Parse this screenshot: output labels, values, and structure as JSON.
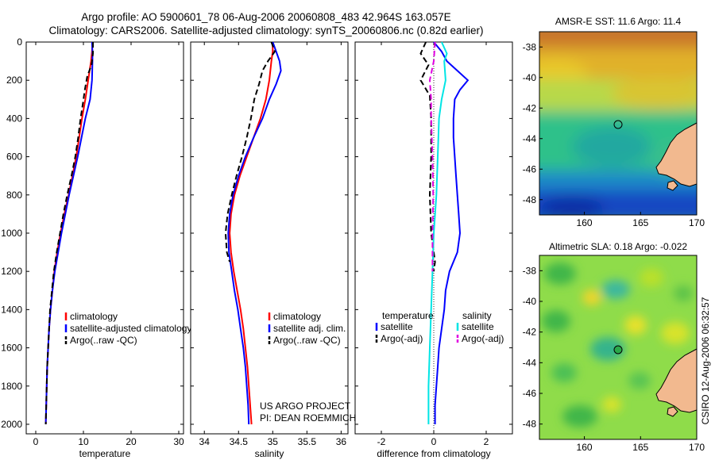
{
  "figure": {
    "title_line1": "Argo profile: AO 5900601_78 06-Aug-2006 20060808_483 42.964S 163.057E",
    "title_line2": "Climatology: CARS2006. Satellite-adjusted climatology: synTS_20060806.nc (0.82d earlier)",
    "footer_lines": [
      "US ARGO PROJECT",
      "PI: DEAN ROEMMICH"
    ],
    "side_stamp": "CSIRO 12-Aug-2006 06:32:57"
  },
  "colors": {
    "climatology": "#ff0000",
    "satellite": "#0000ff",
    "argo": "#000000",
    "sal_satellite": "#00e5e5",
    "sal_argo": "#e000e0",
    "coast": "#f2b98f",
    "float_marker": "#000000"
  },
  "chart_data": [
    {
      "id": "temperature",
      "type": "line",
      "xlabel": "temperature",
      "xlim": [
        -2,
        31
      ],
      "ylim": [
        0,
        2050
      ],
      "y_reversed": true,
      "xticks": [
        0,
        10,
        20,
        30
      ],
      "yticks": [
        0,
        200,
        400,
        600,
        800,
        1000,
        1200,
        1400,
        1600,
        1800,
        2000
      ],
      "legend": [
        "climatology",
        "satellite-adjusted climatology",
        "Argo(..raw -QC)"
      ],
      "series": [
        {
          "name": "climatology",
          "color_key": "climatology",
          "dash": "",
          "points": [
            [
              11.9,
              0
            ],
            [
              11.8,
              50
            ],
            [
              11.6,
              100
            ],
            [
              11.3,
              150
            ],
            [
              11.0,
              200
            ],
            [
              10.4,
              300
            ],
            [
              9.7,
              400
            ],
            [
              9.1,
              500
            ],
            [
              8.5,
              600
            ],
            [
              7.7,
              700
            ],
            [
              6.9,
              800
            ],
            [
              6.0,
              900
            ],
            [
              5.2,
              1000
            ],
            [
              4.5,
              1100
            ],
            [
              3.9,
              1200
            ],
            [
              3.5,
              1300
            ],
            [
              3.1,
              1400
            ],
            [
              2.8,
              1500
            ],
            [
              2.6,
              1600
            ],
            [
              2.4,
              1700
            ],
            [
              2.3,
              1800
            ],
            [
              2.2,
              1900
            ],
            [
              2.1,
              2000
            ]
          ]
        },
        {
          "name": "satellite-adjusted climatology",
          "color_key": "satellite",
          "dash": "",
          "points": [
            [
              11.8,
              0
            ],
            [
              11.9,
              50
            ],
            [
              11.9,
              100
            ],
            [
              11.8,
              200
            ],
            [
              11.4,
              300
            ],
            [
              10.4,
              400
            ],
            [
              9.6,
              500
            ],
            [
              8.8,
              600
            ],
            [
              7.9,
              700
            ],
            [
              7.0,
              800
            ],
            [
              6.2,
              900
            ],
            [
              5.4,
              1000
            ],
            [
              4.7,
              1100
            ],
            [
              4.0,
              1200
            ],
            [
              3.5,
              1300
            ],
            [
              3.1,
              1400
            ],
            [
              2.8,
              1500
            ],
            [
              2.6,
              1600
            ],
            [
              2.4,
              1700
            ],
            [
              2.3,
              1800
            ],
            [
              2.2,
              1900
            ],
            [
              2.1,
              2000
            ]
          ]
        },
        {
          "name": "Argo(..raw -QC)",
          "color_key": "argo",
          "dash": "7,4",
          "points": [
            [
              12.0,
              0
            ],
            [
              12.0,
              60
            ],
            [
              11.7,
              120
            ],
            [
              10.8,
              180
            ],
            [
              10.3,
              250
            ],
            [
              9.9,
              320
            ],
            [
              9.4,
              400
            ],
            [
              8.9,
              500
            ],
            [
              8.3,
              600
            ],
            [
              7.5,
              700
            ],
            [
              6.6,
              800
            ],
            [
              5.8,
              900
            ],
            [
              5.1,
              1000
            ],
            [
              4.4,
              1100
            ],
            [
              3.8,
              1200
            ],
            [
              3.4,
              1300
            ],
            [
              3.0,
              1400
            ],
            [
              2.8,
              1500
            ],
            [
              2.6,
              1600
            ],
            [
              2.4,
              1700
            ],
            [
              2.3,
              1800
            ],
            [
              2.2,
              1900
            ],
            [
              2.1,
              2000
            ]
          ]
        }
      ]
    },
    {
      "id": "salinity",
      "type": "line",
      "xlabel": "salinity",
      "xlim": [
        33.8,
        36.1
      ],
      "ylim": [
        0,
        2050
      ],
      "y_reversed": true,
      "xticks": [
        34,
        34.5,
        35,
        35.5,
        36
      ],
      "yticks": [
        0,
        200,
        400,
        600,
        800,
        1000,
        1200,
        1400,
        1600,
        1800,
        2000
      ],
      "legend": [
        "climatology",
        "satellite adj. clim.",
        "Argo(..raw -QC)"
      ],
      "series": [
        {
          "name": "climatology",
          "color_key": "climatology",
          "dash": "",
          "points": [
            [
              35.0,
              0
            ],
            [
              35.0,
              50
            ],
            [
              34.98,
              100
            ],
            [
              34.95,
              200
            ],
            [
              34.9,
              300
            ],
            [
              34.82,
              400
            ],
            [
              34.72,
              500
            ],
            [
              34.62,
              600
            ],
            [
              34.52,
              700
            ],
            [
              34.44,
              800
            ],
            [
              34.39,
              900
            ],
            [
              34.37,
              1000
            ],
            [
              34.39,
              1100
            ],
            [
              34.43,
              1200
            ],
            [
              34.48,
              1300
            ],
            [
              34.53,
              1400
            ],
            [
              34.57,
              1500
            ],
            [
              34.6,
              1600
            ],
            [
              34.63,
              1700
            ],
            [
              34.65,
              1800
            ],
            [
              34.67,
              1900
            ],
            [
              34.69,
              2000
            ]
          ]
        },
        {
          "name": "satellite adj. clim.",
          "color_key": "satellite",
          "dash": "",
          "points": [
            [
              35.0,
              0
            ],
            [
              35.06,
              60
            ],
            [
              35.1,
              100
            ],
            [
              35.12,
              150
            ],
            [
              35.05,
              220
            ],
            [
              34.95,
              300
            ],
            [
              34.85,
              400
            ],
            [
              34.72,
              500
            ],
            [
              34.6,
              600
            ],
            [
              34.5,
              700
            ],
            [
              34.42,
              800
            ],
            [
              34.37,
              900
            ],
            [
              34.35,
              1000
            ],
            [
              34.36,
              1100
            ],
            [
              34.4,
              1200
            ],
            [
              34.44,
              1300
            ],
            [
              34.49,
              1400
            ],
            [
              34.53,
              1500
            ],
            [
              34.57,
              1600
            ],
            [
              34.6,
              1700
            ],
            [
              34.62,
              1800
            ],
            [
              34.64,
              1900
            ],
            [
              34.65,
              2000
            ]
          ]
        },
        {
          "name": "Argo(..raw -QC)",
          "color_key": "argo",
          "dash": "7,4",
          "points": [
            [
              34.98,
              0
            ],
            [
              35.03,
              50
            ],
            [
              34.93,
              100
            ],
            [
              34.85,
              150
            ],
            [
              34.8,
              220
            ],
            [
              34.73,
              300
            ],
            [
              34.68,
              400
            ],
            [
              34.62,
              500
            ],
            [
              34.55,
              600
            ],
            [
              34.47,
              700
            ],
            [
              34.4,
              800
            ],
            [
              34.34,
              900
            ],
            [
              34.31,
              1000
            ],
            [
              34.33,
              1100
            ],
            [
              34.37,
              1150
            ]
          ]
        }
      ]
    },
    {
      "id": "difference",
      "type": "line",
      "xlabel": "difference from climatology",
      "xlim": [
        -3,
        3
      ],
      "ylim": [
        0,
        2050
      ],
      "y_reversed": true,
      "xticks": [
        -2,
        0,
        2
      ],
      "yticks": [
        0,
        200,
        400,
        600,
        800,
        1000,
        1200,
        1400,
        1600,
        1800,
        2000
      ],
      "legend_headers": [
        "temperature",
        "salinity"
      ],
      "legend_temperature": [
        "satellite",
        "Argo(-adj)"
      ],
      "legend_salinity": [
        "satellite",
        "Argo(-adj)"
      ],
      "series": [
        {
          "name": "temperature satellite",
          "color_key": "satellite",
          "dash": "",
          "points": [
            [
              0.0,
              0
            ],
            [
              0.3,
              50
            ],
            [
              0.5,
              100
            ],
            [
              0.9,
              150
            ],
            [
              1.3,
              200
            ],
            [
              1.0,
              250
            ],
            [
              0.8,
              300
            ],
            [
              0.75,
              400
            ],
            [
              0.75,
              500
            ],
            [
              0.8,
              600
            ],
            [
              0.85,
              700
            ],
            [
              0.9,
              800
            ],
            [
              0.95,
              900
            ],
            [
              1.0,
              1000
            ],
            [
              0.9,
              1100
            ],
            [
              0.6,
              1200
            ],
            [
              0.45,
              1300
            ],
            [
              0.4,
              1400
            ],
            [
              0.3,
              1500
            ],
            [
              0.2,
              1600
            ],
            [
              0.15,
              1700
            ],
            [
              0.1,
              1800
            ],
            [
              0.05,
              1900
            ],
            [
              0.05,
              2000
            ]
          ]
        },
        {
          "name": "temperature Argo(-adj)",
          "color_key": "argo",
          "dash": "7,4",
          "points": [
            [
              -0.3,
              0
            ],
            [
              -0.5,
              60
            ],
            [
              -0.2,
              120
            ],
            [
              -0.5,
              200
            ],
            [
              -0.15,
              280
            ],
            [
              -0.1,
              400
            ],
            [
              -0.1,
              600
            ],
            [
              -0.15,
              800
            ],
            [
              -0.1,
              1000
            ],
            [
              0.0,
              1100
            ],
            [
              0.05,
              1150
            ],
            [
              0.0,
              1200
            ]
          ]
        },
        {
          "name": "salinity satellite",
          "color_key": "sal_satellite",
          "dash": "",
          "points": [
            [
              0.3,
              0
            ],
            [
              0.5,
              60
            ],
            [
              0.4,
              100
            ],
            [
              0.45,
              200
            ],
            [
              0.3,
              300
            ],
            [
              0.2,
              400
            ],
            [
              0.15,
              600
            ],
            [
              0.1,
              800
            ],
            [
              0.0,
              1000
            ],
            [
              -0.05,
              1200
            ],
            [
              -0.1,
              1400
            ],
            [
              -0.15,
              1600
            ],
            [
              -0.2,
              1800
            ],
            [
              -0.2,
              2000
            ]
          ]
        },
        {
          "name": "salinity Argo(-adj)",
          "color_key": "sal_argo",
          "dash": "7,4",
          "points": [
            [
              0.05,
              0
            ],
            [
              0.0,
              100
            ],
            [
              -0.15,
              200
            ],
            [
              -0.1,
              300
            ],
            [
              -0.1,
              400
            ],
            [
              -0.05,
              600
            ],
            [
              -0.02,
              800
            ],
            [
              -0.05,
              1000
            ],
            [
              -0.05,
              1200
            ]
          ]
        }
      ]
    },
    {
      "id": "sst_map",
      "type": "heatmap",
      "title": "AMSR-E SST: 11.6 Argo: 11.4",
      "xlim": [
        156,
        170
      ],
      "ylim": [
        -49,
        -37
      ],
      "xticks": [
        160,
        165,
        170
      ],
      "yticks": [
        -38,
        -40,
        -42,
        -44,
        -46,
        -48
      ],
      "float_position": [
        163.057,
        -42.964
      ]
    },
    {
      "id": "sla_map",
      "type": "heatmap",
      "title": "Altimetric SLA: 0.18 Argo: -0.022",
      "xlim": [
        156,
        170
      ],
      "ylim": [
        -49,
        -37
      ],
      "xticks": [
        160,
        165,
        170
      ],
      "yticks": [
        -38,
        -40,
        -42,
        -44,
        -46,
        -48
      ],
      "float_position": [
        163.057,
        -42.964
      ]
    }
  ]
}
